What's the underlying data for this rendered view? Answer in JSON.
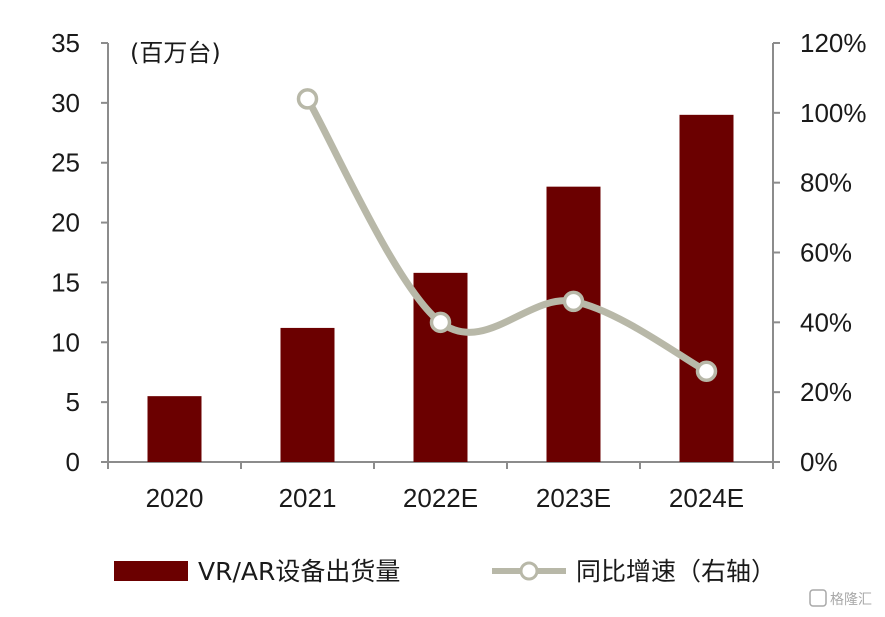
{
  "chart_data": {
    "type": "bar",
    "categories": [
      "2020",
      "2021",
      "2022E",
      "2023E",
      "2024E"
    ],
    "series": [
      {
        "name": "VR/AR设备出货量",
        "type": "bar",
        "axis": "left",
        "values": [
          5.5,
          11.2,
          15.8,
          23.0,
          29.0
        ],
        "color": "#6b0000"
      },
      {
        "name": "同比增速（右轴）",
        "type": "line",
        "axis": "right",
        "values": [
          null,
          1.04,
          0.4,
          0.46,
          0.26
        ],
        "color": "#b8b8a8"
      }
    ],
    "y_left": {
      "unit_label": "(百万台)",
      "min": 0,
      "max": 35,
      "step": 5,
      "ticks": [
        "0",
        "5",
        "10",
        "15",
        "20",
        "25",
        "30",
        "35"
      ]
    },
    "y_right": {
      "min": 0,
      "max": 1.2,
      "step": 0.2,
      "ticks": [
        "0%",
        "20%",
        "40%",
        "60%",
        "80%",
        "100%",
        "120%"
      ]
    },
    "grid": false,
    "legend_position": "bottom"
  },
  "watermark": "格隆汇"
}
